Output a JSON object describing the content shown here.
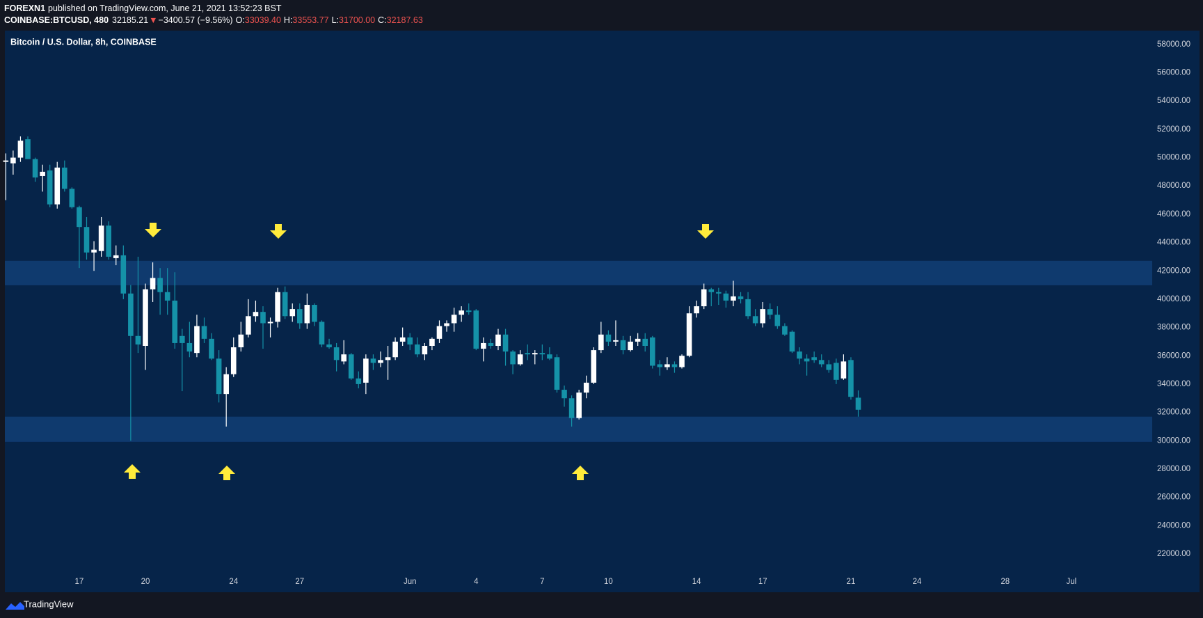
{
  "header": {
    "author": "FOREXN1",
    "published": "published on TradingView.com, June 21, 2021 13:52:23 BST",
    "symbol": "COINBASE:BTCUSD, 480",
    "last": "32185.21",
    "direction": "▼",
    "change": "−3400.57 (−9.56%)",
    "ohlc": [
      {
        "label": "O:",
        "value": "33039.40"
      },
      {
        "label": "H:",
        "value": "33553.77"
      },
      {
        "label": "L:",
        "value": "31700.00"
      },
      {
        "label": "C:",
        "value": "32187.63"
      }
    ]
  },
  "footer": {
    "brand": "TradingView"
  },
  "chart_data": {
    "type": "candlestick",
    "title": "Bitcoin / U.S. Dollar, 8h, COINBASE",
    "up_color": "#ffffff",
    "down_color": "#1592a8",
    "zone_color": "#0f3a6e",
    "zones": [
      {
        "low": 40980,
        "high": 42710
      },
      {
        "low": 29920,
        "high": 31700
      }
    ],
    "xlim": [
      "2021-05-13T15:00",
      "2021-07-04T16:00"
    ],
    "xticks": [
      {
        "value": "2021-05-17T00:00",
        "label": "17"
      },
      {
        "value": "2021-05-20T00:00",
        "label": "20"
      },
      {
        "value": "2021-05-24T00:00",
        "label": "24"
      },
      {
        "value": "2021-05-27T00:00",
        "label": "27"
      },
      {
        "value": "2021-06-01T00:00",
        "label": "Jun"
      },
      {
        "value": "2021-06-04T00:00",
        "label": "4"
      },
      {
        "value": "2021-06-07T00:00",
        "label": "7"
      },
      {
        "value": "2021-06-10T00:00",
        "label": "10"
      },
      {
        "value": "2021-06-14T00:00",
        "label": "14"
      },
      {
        "value": "2021-06-17T00:00",
        "label": "17"
      },
      {
        "value": "2021-06-21T00:00",
        "label": "21"
      },
      {
        "value": "2021-06-24T00:00",
        "label": "24"
      },
      {
        "value": "2021-06-28T00:00",
        "label": "28"
      },
      {
        "value": "2021-07-01T00:00",
        "label": "Jul"
      }
    ],
    "ylim": [
      20915,
      58976
    ],
    "yticks": [
      {
        "value": 22000,
        "label": "22000.00"
      },
      {
        "value": 24000,
        "label": "24000.00"
      },
      {
        "value": 26000,
        "label": "26000.00"
      },
      {
        "value": 28000,
        "label": "28000.00"
      },
      {
        "value": 30000,
        "label": "30000.00"
      },
      {
        "value": 32000,
        "label": "32000.00"
      },
      {
        "value": 34000,
        "label": "34000.00"
      },
      {
        "value": 36000,
        "label": "36000.00"
      },
      {
        "value": 38000,
        "label": "38000.00"
      },
      {
        "value": 40000,
        "label": "40000.00"
      },
      {
        "value": 42000,
        "label": "42000.00"
      },
      {
        "value": 44000,
        "label": "44000.00"
      },
      {
        "value": 46000,
        "label": "46000.00"
      },
      {
        "value": 48000,
        "label": "48000.00"
      },
      {
        "value": 50000,
        "label": "50000.00"
      },
      {
        "value": 52000,
        "label": "52000.00"
      },
      {
        "value": 54000,
        "label": "54000.00"
      },
      {
        "value": 56000,
        "label": "56000.00"
      },
      {
        "value": 58000,
        "label": "58000.00"
      }
    ],
    "x": [
      "2021-05-13T16:00",
      "2021-05-14T00:00",
      "2021-05-14T08:00",
      "2021-05-14T16:00",
      "2021-05-15T00:00",
      "2021-05-15T08:00",
      "2021-05-15T16:00",
      "2021-05-16T00:00",
      "2021-05-16T08:00",
      "2021-05-16T16:00",
      "2021-05-17T00:00",
      "2021-05-17T08:00",
      "2021-05-17T16:00",
      "2021-05-18T00:00",
      "2021-05-18T08:00",
      "2021-05-18T16:00",
      "2021-05-19T00:00",
      "2021-05-19T08:00",
      "2021-05-19T16:00",
      "2021-05-20T00:00",
      "2021-05-20T08:00",
      "2021-05-20T16:00",
      "2021-05-21T00:00",
      "2021-05-21T08:00",
      "2021-05-21T16:00",
      "2021-05-22T00:00",
      "2021-05-22T08:00",
      "2021-05-22T16:00",
      "2021-05-23T00:00",
      "2021-05-23T08:00",
      "2021-05-23T16:00",
      "2021-05-24T00:00",
      "2021-05-24T08:00",
      "2021-05-24T16:00",
      "2021-05-25T00:00",
      "2021-05-25T08:00",
      "2021-05-25T16:00",
      "2021-05-26T00:00",
      "2021-05-26T08:00",
      "2021-05-26T16:00",
      "2021-05-27T00:00",
      "2021-05-27T08:00",
      "2021-05-27T16:00",
      "2021-05-28T00:00",
      "2021-05-28T08:00",
      "2021-05-28T16:00",
      "2021-05-29T00:00",
      "2021-05-29T08:00",
      "2021-05-29T16:00",
      "2021-05-30T00:00",
      "2021-05-30T08:00",
      "2021-05-30T16:00",
      "2021-05-31T00:00",
      "2021-05-31T08:00",
      "2021-05-31T16:00",
      "2021-06-01T00:00",
      "2021-06-01T08:00",
      "2021-06-01T16:00",
      "2021-06-02T00:00",
      "2021-06-02T08:00",
      "2021-06-02T16:00",
      "2021-06-03T00:00",
      "2021-06-03T08:00",
      "2021-06-03T16:00",
      "2021-06-04T00:00",
      "2021-06-04T08:00",
      "2021-06-04T16:00",
      "2021-06-05T00:00",
      "2021-06-05T08:00",
      "2021-06-05T16:00",
      "2021-06-06T00:00",
      "2021-06-06T08:00",
      "2021-06-06T16:00",
      "2021-06-07T00:00",
      "2021-06-07T08:00",
      "2021-06-07T16:00",
      "2021-06-08T00:00",
      "2021-06-08T08:00",
      "2021-06-08T16:00",
      "2021-06-09T00:00",
      "2021-06-09T08:00",
      "2021-06-09T16:00",
      "2021-06-10T00:00",
      "2021-06-10T08:00",
      "2021-06-10T16:00",
      "2021-06-11T00:00",
      "2021-06-11T08:00",
      "2021-06-11T16:00",
      "2021-06-12T00:00",
      "2021-06-12T08:00",
      "2021-06-12T16:00",
      "2021-06-13T00:00",
      "2021-06-13T08:00",
      "2021-06-13T16:00",
      "2021-06-14T00:00",
      "2021-06-14T08:00",
      "2021-06-14T16:00",
      "2021-06-15T00:00",
      "2021-06-15T08:00",
      "2021-06-15T16:00",
      "2021-06-16T00:00",
      "2021-06-16T08:00",
      "2021-06-16T16:00",
      "2021-06-17T00:00",
      "2021-06-17T08:00",
      "2021-06-17T16:00",
      "2021-06-18T00:00",
      "2021-06-18T08:00",
      "2021-06-18T16:00",
      "2021-06-19T00:00",
      "2021-06-19T08:00",
      "2021-06-19T16:00",
      "2021-06-20T00:00",
      "2021-06-20T08:00",
      "2021-06-20T16:00",
      "2021-06-21T00:00",
      "2021-06-21T08:00"
    ],
    "open": [
      49700,
      49600,
      50000,
      51300,
      49900,
      48700,
      49100,
      46700,
      49300,
      47800,
      46500,
      45100,
      43300,
      43400,
      45200,
      42900,
      43100,
      40400,
      37400,
      36700,
      40700,
      41500,
      40500,
      39900,
      37400,
      36900,
      36200,
      38100,
      37200,
      35800,
      33300,
      34700,
      36600,
      37500,
      38800,
      39100,
      38300,
      38400,
      40500,
      38800,
      39300,
      38300,
      39600,
      38400,
      36800,
      36600,
      35600,
      36100,
      34400,
      34100,
      35800,
      35500,
      35700,
      35900,
      37000,
      37300,
      36800,
      36100,
      36700,
      37200,
      38100,
      38300,
      38900,
      39200,
      39200,
      36500,
      36900,
      36700,
      37500,
      36300,
      35400,
      36200,
      36100,
      36200,
      36100,
      35900,
      33600,
      33000,
      31600,
      33400,
      34100,
      36400,
      37500,
      37000,
      37100,
      36400,
      37000,
      37200,
      37300,
      35400,
      35200,
      35400,
      35200,
      36000,
      39000,
      39500,
      40700,
      40500,
      40400,
      39900,
      40200,
      40000,
      38800,
      38300,
      39300,
      38900,
      38100,
      37700,
      36300,
      35800,
      35900,
      35700,
      35400,
      35500,
      34400,
      35700,
      33039.4
    ],
    "high": [
      50300,
      50500,
      51500,
      51500,
      50000,
      49500,
      49500,
      49700,
      49800,
      47900,
      46600,
      45800,
      44100,
      45800,
      45500,
      43800,
      43800,
      41000,
      43000,
      41100,
      42600,
      42200,
      42200,
      41900,
      37900,
      38400,
      38900,
      38700,
      37600,
      36400,
      35200,
      37300,
      38400,
      40000,
      39900,
      39500,
      38700,
      40800,
      40900,
      39700,
      39700,
      40400,
      39700,
      38500,
      37200,
      36900,
      37100,
      36200,
      34900,
      36100,
      36100,
      36300,
      36700,
      37300,
      38000,
      37600,
      37300,
      36900,
      37300,
      38500,
      38500,
      39400,
      39500,
      39700,
      39300,
      37300,
      37200,
      37900,
      37900,
      36400,
      36400,
      36800,
      36400,
      36800,
      36600,
      36100,
      33900,
      33200,
      33600,
      34600,
      36600,
      38400,
      37800,
      38500,
      37400,
      37400,
      37600,
      37600,
      37400,
      35700,
      35900,
      35600,
      36100,
      39500,
      39900,
      41100,
      40800,
      40800,
      40600,
      41300,
      40500,
      40500,
      39300,
      39800,
      39700,
      39500,
      38300,
      37800,
      36600,
      36100,
      36300,
      36100,
      35700,
      35800,
      36100,
      35900,
      33553.77
    ],
    "low": [
      47000,
      48800,
      49700,
      49900,
      48300,
      47600,
      46500,
      46400,
      47600,
      46400,
      42200,
      42800,
      42000,
      43000,
      42800,
      42400,
      40000,
      30000,
      36200,
      35000,
      39800,
      38900,
      38900,
      36500,
      33500,
      35900,
      35900,
      36900,
      35700,
      32700,
      31000,
      34500,
      36300,
      37300,
      38400,
      36500,
      37300,
      38000,
      38600,
      38400,
      37900,
      37900,
      38100,
      36600,
      36500,
      34900,
      35400,
      34300,
      33700,
      33300,
      35000,
      35200,
      34300,
      35700,
      36700,
      36400,
      35900,
      35700,
      36400,
      36900,
      37700,
      37700,
      38400,
      38900,
      36400,
      35600,
      36500,
      36400,
      35300,
      34700,
      35300,
      35700,
      35400,
      35700,
      35700,
      33400,
      32400,
      31000,
      31500,
      33000,
      34000,
      36200,
      36700,
      36700,
      36100,
      36300,
      36700,
      36300,
      35100,
      34600,
      35000,
      34800,
      35100,
      35900,
      38700,
      39300,
      39500,
      39600,
      39400,
      39500,
      39700,
      38600,
      38100,
      38000,
      38600,
      37900,
      37400,
      36200,
      35400,
      34600,
      35500,
      35200,
      34800,
      34000,
      34300,
      32900,
      31700
    ],
    "close": [
      49800,
      50000,
      51200,
      49900,
      48600,
      49000,
      46700,
      49300,
      47800,
      46500,
      45100,
      43300,
      43500,
      45200,
      43000,
      43100,
      40400,
      37400,
      36800,
      40700,
      41500,
      40500,
      39900,
      36900,
      36900,
      36300,
      38100,
      37200,
      35800,
      33300,
      34700,
      36600,
      37500,
      38800,
      39100,
      38300,
      38400,
      40500,
      38800,
      39300,
      38300,
      39600,
      38400,
      36800,
      36600,
      35700,
      36100,
      34400,
      34000,
      35800,
      35500,
      35700,
      35900,
      37000,
      37300,
      36800,
      36100,
      36700,
      37200,
      38100,
      38300,
      38900,
      39200,
      39100,
      36500,
      36900,
      36700,
      37500,
      36300,
      35400,
      36100,
      36100,
      36200,
      36100,
      35800,
      33600,
      33000,
      31600,
      33400,
      34100,
      36400,
      37500,
      37000,
      37100,
      36400,
      37000,
      37200,
      36700,
      35300,
      35200,
      35400,
      35200,
      36000,
      39000,
      39500,
      40700,
      40500,
      40400,
      39900,
      40200,
      40000,
      38800,
      38300,
      39300,
      38900,
      38100,
      37500,
      36300,
      35800,
      35600,
      35700,
      35400,
      35000,
      34300,
      35600,
      33100,
      32187.63
    ]
  }
}
